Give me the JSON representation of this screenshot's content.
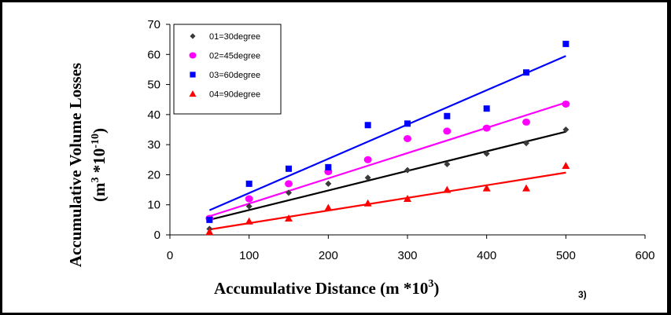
{
  "chart_data": {
    "type": "scatter",
    "xlabel": "Accumulative Distance (m *10",
    "xlabel_sup": "3",
    "xlabel_close": ")",
    "ylabel_line1": "Accumulative Volume Losses",
    "ylabel_line2_open": "(m",
    "ylabel_line2_sup1": "3",
    "ylabel_line2_mid": " *10",
    "ylabel_line2_sup2": "-10",
    "ylabel_line2_close": ")",
    "corner_note": "3)",
    "xlim": [
      0,
      600
    ],
    "ylim": [
      0,
      70
    ],
    "xticks": [
      0,
      100,
      200,
      300,
      400,
      500,
      600
    ],
    "yticks": [
      0,
      10,
      20,
      30,
      40,
      50,
      60,
      70
    ],
    "x": [
      50,
      100,
      150,
      200,
      250,
      300,
      350,
      400,
      450,
      500
    ],
    "series": [
      {
        "name": "01=30degree",
        "color": "#3a3a3a",
        "line_color": "#000000",
        "marker": "diamond",
        "values": [
          2,
          9.5,
          14,
          17,
          19,
          21.5,
          23.5,
          27,
          30.5,
          35
        ],
        "trend": [
          [
            50,
            5
          ],
          [
            500,
            34.3
          ]
        ]
      },
      {
        "name": "02=45degree",
        "color": "#ff00ff",
        "line_color": "#ff00ff",
        "marker": "circle",
        "values": [
          5.5,
          12,
          17,
          21,
          25,
          32,
          34.5,
          35.5,
          37.5,
          43.5
        ],
        "trend": [
          [
            50,
            6.2
          ],
          [
            500,
            44
          ]
        ]
      },
      {
        "name": "03=60degree",
        "color": "#0000ff",
        "line_color": "#0000ff",
        "marker": "square",
        "values": [
          5,
          17,
          22,
          22.5,
          36.5,
          37,
          39.5,
          42,
          54,
          63.5
        ],
        "trend": [
          [
            50,
            8.2
          ],
          [
            500,
            59.5
          ]
        ]
      },
      {
        "name": "04=90degree",
        "color": "#ff0000",
        "line_color": "#ff0000",
        "marker": "triangle",
        "values": [
          1,
          4.5,
          5.5,
          9,
          10.5,
          12,
          15,
          15.5,
          15.5,
          23
        ],
        "trend": [
          [
            50,
            1.8
          ],
          [
            500,
            20.7
          ]
        ]
      }
    ]
  }
}
